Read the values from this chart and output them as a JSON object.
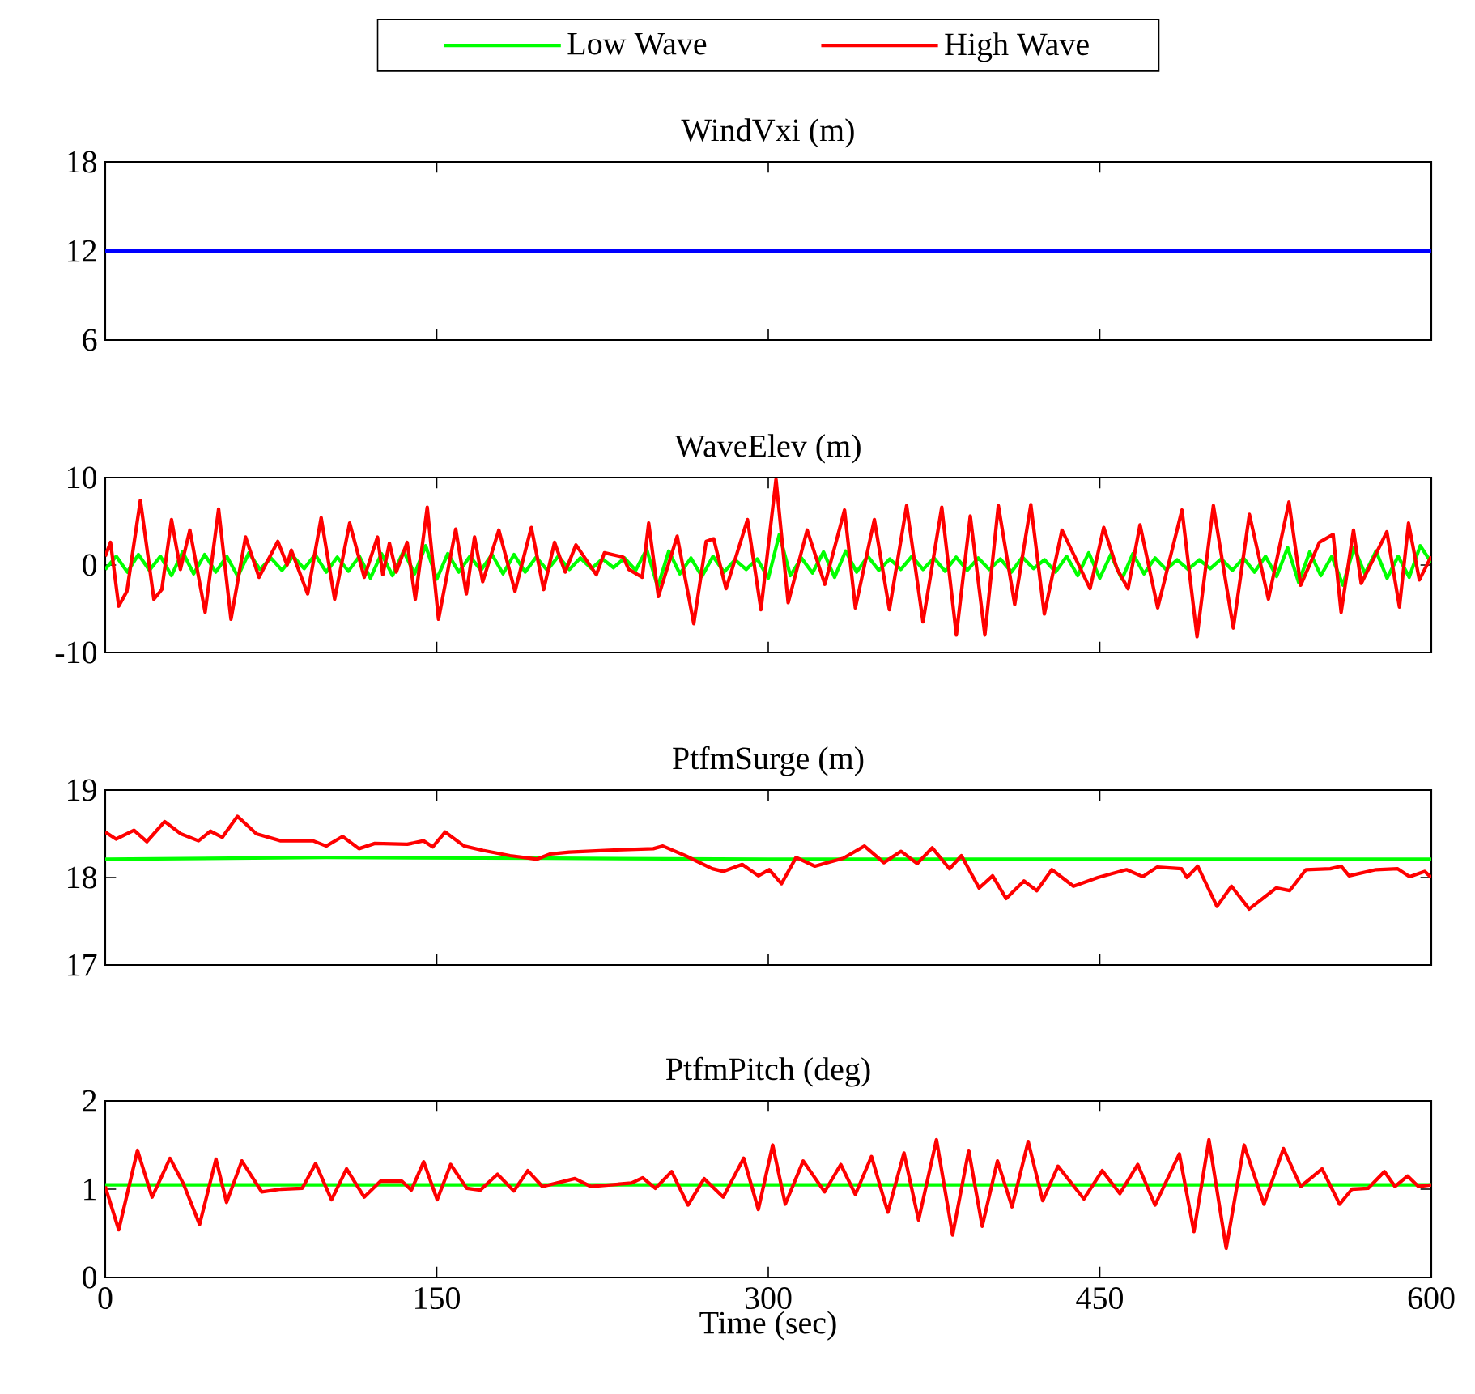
{
  "chart_data": [
    {
      "type": "line",
      "title": "WindVxi (m)",
      "xlim": [
        0,
        600
      ],
      "ylim": [
        6,
        18
      ],
      "xticks": [
        0,
        150,
        300,
        450,
        600
      ],
      "yticks": [
        6,
        12,
        18
      ],
      "tick_labels": "y",
      "series": [
        {
          "color": "#0000ff",
          "x": [
            0,
            600
          ],
          "values": [
            12,
            12
          ]
        }
      ]
    },
    {
      "type": "line",
      "title": "WaveElev (m)",
      "xlim": [
        0,
        600
      ],
      "ylim": [
        -10,
        10
      ],
      "xticks": [
        0,
        150,
        300,
        450,
        600
      ],
      "yticks": [
        -10,
        0,
        10
      ],
      "tick_labels": "y",
      "legend": "top",
      "series": [
        {
          "name": "Low Wave",
          "color": "#00ff00",
          "x": [
            0,
            5,
            10,
            15,
            20,
            25,
            30,
            35,
            40,
            45,
            50,
            55,
            60,
            65,
            70,
            75,
            80,
            85,
            90,
            95,
            100,
            105,
            110,
            115,
            120,
            125,
            130,
            135,
            140,
            145,
            150,
            155,
            160,
            165,
            170,
            175,
            180,
            185,
            190,
            195,
            200,
            205,
            210,
            215,
            220,
            225,
            230,
            235,
            240,
            245,
            250,
            255,
            260,
            265,
            270,
            275,
            280,
            285,
            290,
            295,
            300,
            305,
            310,
            315,
            320,
            325,
            330,
            335,
            340,
            345,
            350,
            355,
            360,
            365,
            370,
            375,
            380,
            385,
            390,
            395,
            400,
            405,
            410,
            415,
            420,
            425,
            430,
            435,
            440,
            445,
            450,
            455,
            460,
            465,
            470,
            475,
            480,
            485,
            490,
            495,
            500,
            505,
            510,
            515,
            520,
            525,
            530,
            535,
            540,
            545,
            550,
            555,
            560,
            565,
            570,
            575,
            580,
            585,
            590,
            595,
            600
          ],
          "values": [
            -0.5,
            1.0,
            -0.8,
            1.2,
            -0.6,
            1.0,
            -1.2,
            1.5,
            -1.0,
            1.2,
            -0.8,
            1.0,
            -1.3,
            1.4,
            -0.5,
            0.8,
            -0.6,
            1.0,
            -0.4,
            1.2,
            -0.8,
            0.9,
            -0.7,
            1.0,
            -1.5,
            1.3,
            -1.2,
            1.6,
            -1.0,
            2.2,
            -1.6,
            1.3,
            -0.8,
            1.0,
            -0.6,
            1.2,
            -1.0,
            1.2,
            -0.8,
            0.9,
            -0.6,
            1.0,
            -0.5,
            0.8,
            -0.4,
            0.7,
            -0.3,
            0.8,
            -0.6,
            1.8,
            -2.5,
            1.6,
            -1.0,
            0.8,
            -1.3,
            1.0,
            -0.8,
            0.6,
            -0.5,
            0.7,
            -1.5,
            3.5,
            -1.2,
            0.8,
            -0.9,
            1.5,
            -1.4,
            1.6,
            -0.8,
            1.0,
            -0.6,
            0.7,
            -0.5,
            1.0,
            -0.5,
            0.8,
            -0.7,
            0.9,
            -0.6,
            0.8,
            -0.5,
            0.7,
            -0.8,
            0.9,
            -0.4,
            0.6,
            -0.8,
            1.0,
            -1.2,
            1.4,
            -1.5,
            1.2,
            -1.6,
            1.3,
            -1.0,
            0.8,
            -0.5,
            0.6,
            -0.5,
            0.6,
            -0.4,
            0.7,
            -0.6,
            0.8,
            -0.8,
            1.0,
            -1.3,
            2.0,
            -2.0,
            1.5,
            -1.2,
            1.0,
            -2.3,
            2.0,
            -1.0,
            1.6,
            -1.5,
            1.0,
            -1.4,
            2.2,
            0.3
          ]
        },
        {
          "name": "High Wave",
          "color": "#ff0000",
          "x": [
            0,
            2.4,
            6.1,
            9.8,
            15.9,
            22,
            25.6,
            30,
            34,
            38.3,
            45.2,
            51.3,
            56.9,
            63.5,
            69.6,
            78.1,
            82.3,
            84.2,
            91.6,
            97.7,
            103.8,
            110.6,
            117.2,
            123.2,
            125.6,
            128.6,
            131.7,
            136.6,
            140.3,
            145.7,
            150.8,
            158.6,
            163.4,
            167.1,
            170.8,
            178.1,
            185.4,
            192.8,
            198.4,
            203.3,
            208.1,
            213,
            222.2,
            225.9,
            234.4,
            236.9,
            243,
            245.9,
            250.3,
            258.8,
            266.3,
            271.9,
            275.3,
            280.9,
            290.6,
            296.7,
            303.5,
            309,
            317.6,
            325.6,
            334.5,
            339.4,
            348,
            354.8,
            362.6,
            370,
            378.5,
            385.1,
            391.4,
            398,
            404.1,
            411.5,
            418.8,
            424.9,
            432.9,
            445.6,
            451.8,
            457.9,
            462.8,
            468.2,
            476.2,
            487.2,
            494,
            501.4,
            510.4,
            517.7,
            526.3,
            535.6,
            540.9,
            549.4,
            555.6,
            559.2,
            564.8,
            568.3,
            579.9,
            585.6,
            589.7,
            594.6,
            600
          ],
          "values": [
            1.0,
            2.6,
            -4.7,
            -3,
            7.4,
            -3.9,
            -2.8,
            5.2,
            -0.5,
            4,
            -5.4,
            6.4,
            -6.2,
            3.2,
            -1.4,
            2.7,
            0,
            1.7,
            -3.3,
            5.4,
            -3.9,
            4.8,
            -1.4,
            3.2,
            -1.1,
            2.5,
            -0.8,
            2.6,
            -3.9,
            6.6,
            -6.2,
            4.1,
            -3.3,
            3.2,
            -1.9,
            4,
            -3,
            4.3,
            -2.8,
            2.6,
            -0.8,
            2.3,
            -1.1,
            1.4,
            0.9,
            -0.5,
            -1.4,
            4.8,
            -3.6,
            3.3,
            -6.7,
            2.7,
            3,
            -2.7,
            5.2,
            -5.1,
            9.8,
            -4.3,
            4,
            -2.2,
            6.3,
            -4.9,
            5.2,
            -5.1,
            6.8,
            -6.5,
            6.6,
            -8,
            5.6,
            -8,
            6.8,
            -4.5,
            6.9,
            -5.6,
            4,
            -2.7,
            4.3,
            -0.5,
            -2.7,
            4.6,
            -4.9,
            6.3,
            -8.2,
            6.8,
            -7.2,
            5.8,
            -3.9,
            7.2,
            -2.3,
            2.6,
            3.5,
            -5.4,
            4,
            -2.1,
            3.8,
            -4.8,
            4.8,
            -1.7,
            1.0
          ]
        }
      ]
    },
    {
      "type": "line",
      "title": "PtfmSurge (m)",
      "xlim": [
        0,
        600
      ],
      "ylim": [
        17,
        19
      ],
      "xticks": [
        0,
        150,
        300,
        450,
        600
      ],
      "yticks": [
        17,
        18,
        19
      ],
      "tick_labels": "y",
      "series": [
        {
          "color": "#00ff00",
          "x": [
            0,
            100,
            200,
            300,
            400,
            500,
            600
          ],
          "values": [
            18.21,
            18.23,
            18.22,
            18.21,
            18.21,
            18.21,
            18.21
          ]
        },
        {
          "color": "#ff0000",
          "x": [
            0,
            4.9,
            13,
            18.8,
            26.9,
            34.2,
            42.2,
            47.6,
            53,
            59.8,
            68.4,
            79.4,
            94,
            100,
            107.4,
            114.8,
            122,
            136.7,
            144,
            148.2,
            153.8,
            162.4,
            170.9,
            183.2,
            195.4,
            201.5,
            210,
            225.9,
            248,
            252.3,
            262.5,
            274.7,
            279.6,
            288.2,
            295.5,
            300.4,
            306,
            312.6,
            321.1,
            333.9,
            343.5,
            352.3,
            360.1,
            367.4,
            374.2,
            382,
            387.4,
            395.4,
            401.5,
            407.6,
            415.7,
            421.5,
            428.3,
            438.1,
            449.1,
            462.1,
            469.4,
            476,
            487,
            489.4,
            494.3,
            503,
            509.6,
            517.6,
            529.8,
            535.9,
            543.3,
            554.3,
            559.2,
            562.8,
            575,
            584.8,
            590.2,
            597,
            600
          ],
          "values": [
            18.52,
            18.44,
            18.54,
            18.41,
            18.64,
            18.5,
            18.42,
            18.53,
            18.46,
            18.7,
            18.5,
            18.42,
            18.42,
            18.36,
            18.47,
            18.33,
            18.39,
            18.38,
            18.42,
            18.35,
            18.52,
            18.36,
            18.31,
            18.25,
            18.21,
            18.27,
            18.29,
            18.31,
            18.33,
            18.36,
            18.25,
            18.1,
            18.07,
            18.15,
            18.02,
            18.09,
            17.93,
            18.23,
            18.13,
            18.22,
            18.36,
            18.17,
            18.3,
            18.16,
            18.34,
            18.1,
            18.25,
            17.88,
            18.02,
            17.76,
            17.96,
            17.85,
            18.09,
            17.9,
            18,
            18.09,
            18.01,
            18.12,
            18.1,
            18,
            18.13,
            17.67,
            17.9,
            17.64,
            17.88,
            17.85,
            18.09,
            18.1,
            18.13,
            18.02,
            18.09,
            18.1,
            18.01,
            18.07,
            18.0
          ]
        }
      ]
    },
    {
      "type": "line",
      "title": "PtfmPitch (deg)",
      "xlabel": "Time (sec)",
      "xlim": [
        0,
        600
      ],
      "ylim": [
        0,
        2
      ],
      "xticks": [
        0,
        150,
        300,
        450,
        600
      ],
      "yticks": [
        0,
        1,
        2
      ],
      "series": [
        {
          "color": "#00ff00",
          "x": [
            0,
            150,
            300,
            450,
            600
          ],
          "values": [
            1.05,
            1.05,
            1.05,
            1.05,
            1.05
          ]
        },
        {
          "color": "#ff0000",
          "x": [
            0,
            6.1,
            14.6,
            21.2,
            29.3,
            35.4,
            42.7,
            50.1,
            54.9,
            61.8,
            70.8,
            79.4,
            89.1,
            95.2,
            102.4,
            109.2,
            117.2,
            124.5,
            134.3,
            138.5,
            144.1,
            150.2,
            156.3,
            163.6,
            169.7,
            177.5,
            184.9,
            191.2,
            197.8,
            212.5,
            219.8,
            238.1,
            243.2,
            248.9,
            256.3,
            263.7,
            271,
            279.6,
            288.9,
            295.5,
            302,
            307.7,
            315.8,
            325.5,
            332.8,
            339.4,
            346.7,
            354.1,
            361.4,
            368,
            376.1,
            383.4,
            390.7,
            396.8,
            403.7,
            410.3,
            417.6,
            424.2,
            431.1,
            442.8,
            451.1,
            459.1,
            467.2,
            475,
            486,
            492.6,
            499.4,
            507.2,
            515.3,
            524.3,
            533.1,
            540.9,
            550.6,
            558.5,
            564.1,
            571.4,
            578.8,
            583.6,
            589.3,
            594.2,
            600
          ],
          "values": [
            1.03,
            0.54,
            1.44,
            0.91,
            1.35,
            1.06,
            0.6,
            1.34,
            0.85,
            1.32,
            0.97,
            1,
            1.01,
            1.29,
            0.88,
            1.23,
            0.91,
            1.09,
            1.09,
            0.99,
            1.31,
            0.88,
            1.28,
            1.01,
            0.99,
            1.17,
            0.98,
            1.21,
            1.03,
            1.12,
            1.03,
            1.07,
            1.13,
            1.01,
            1.2,
            0.82,
            1.12,
            0.91,
            1.35,
            0.77,
            1.5,
            0.83,
            1.32,
            0.97,
            1.28,
            0.94,
            1.37,
            0.74,
            1.41,
            0.65,
            1.56,
            0.48,
            1.44,
            0.58,
            1.32,
            0.8,
            1.54,
            0.87,
            1.26,
            0.89,
            1.21,
            0.95,
            1.28,
            0.82,
            1.4,
            0.52,
            1.56,
            0.33,
            1.5,
            0.83,
            1.46,
            1.03,
            1.23,
            0.83,
            1,
            1.01,
            1.2,
            1.03,
            1.15,
            1.03,
            1.05
          ]
        }
      ]
    }
  ]
}
